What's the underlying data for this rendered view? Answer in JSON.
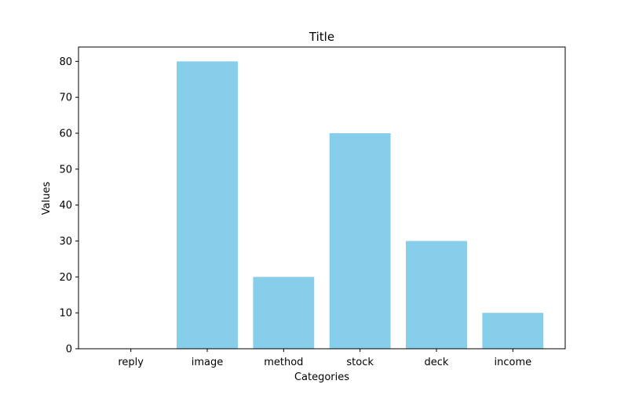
{
  "chart_data": {
    "type": "bar",
    "title": "Title",
    "xlabel": "Categories",
    "ylabel": "Values",
    "categories": [
      "reply",
      "image",
      "method",
      "stock",
      "deck",
      "income"
    ],
    "values": [
      0,
      80,
      20,
      60,
      30,
      10
    ],
    "ylim": [
      0,
      84
    ],
    "yticks": [
      0,
      10,
      20,
      30,
      40,
      50,
      60,
      70,
      80
    ],
    "bar_color": "#87ceeb",
    "grid": false,
    "legend": "none"
  }
}
